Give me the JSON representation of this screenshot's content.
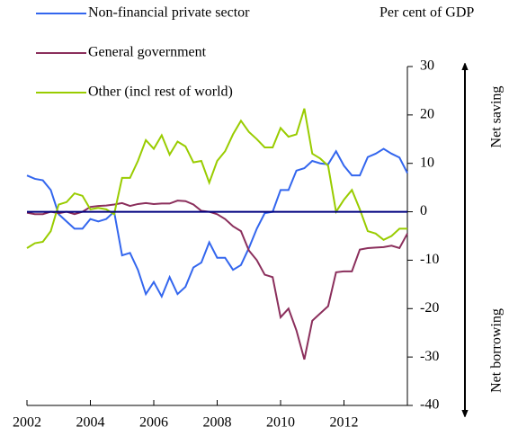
{
  "chart_data": {
    "type": "line",
    "y_axis_label": "Per cent of GDP",
    "annotations": [
      "Net saving",
      "Net borrowing"
    ],
    "x": [
      2002,
      2002.25,
      2002.5,
      2002.75,
      2003,
      2003.25,
      2003.5,
      2003.75,
      2004,
      2004.25,
      2004.5,
      2004.75,
      2005,
      2005.25,
      2005.5,
      2005.75,
      2006,
      2006.25,
      2006.5,
      2006.75,
      2007,
      2007.25,
      2007.5,
      2007.75,
      2008,
      2008.25,
      2008.5,
      2008.75,
      2009,
      2009.25,
      2009.5,
      2009.75,
      2010,
      2010.25,
      2010.5,
      2010.75,
      2011,
      2011.25,
      2011.5,
      2011.75,
      2012,
      2012.25,
      2012.5,
      2012.75,
      2013,
      2013.25,
      2013.5,
      2013.75,
      2014
    ],
    "series": [
      {
        "name": "Non-financial private sector",
        "color": "#3366ee",
        "values": [
          7.5,
          6.8,
          6.5,
          4.5,
          -0.5,
          -2,
          -3.5,
          -3.5,
          -1.5,
          -2,
          -1.5,
          0,
          -9,
          -8.5,
          -12,
          -17,
          -14.5,
          -17.5,
          -13.5,
          -17,
          -15.5,
          -11.5,
          -10.5,
          -6.3,
          -9.5,
          -9.5,
          -12,
          -11,
          -7.5,
          -3.5,
          -0.3,
          0,
          4.5,
          4.5,
          8.5,
          9,
          10.5,
          10,
          9.8,
          12.5,
          9.5,
          7.5,
          7.5,
          11.3,
          12,
          13,
          12,
          11.2,
          8
        ]
      },
      {
        "name": "General government",
        "color": "#8b2f5c",
        "values": [
          -0.2,
          -0.5,
          -0.5,
          0,
          -0.3,
          0,
          -0.5,
          0,
          1,
          1.2,
          1.3,
          1.5,
          1.8,
          1.2,
          1.6,
          1.8,
          1.6,
          1.7,
          1.7,
          2.3,
          2.2,
          1.5,
          0.2,
          0,
          -0.5,
          -1.5,
          -3,
          -4,
          -8,
          -10,
          -13,
          -13.5,
          -21.8,
          -20,
          -24.5,
          -30.5,
          -22.5,
          -21,
          -19.5,
          -12.5,
          -12.3,
          -12.3,
          -7.8,
          -7.5,
          -7.4,
          -7.3,
          -7,
          -7.5,
          -4.5
        ]
      },
      {
        "name": "Other (incl rest of world)",
        "color": "#99cc00",
        "values": [
          -7.5,
          -6.5,
          -6.2,
          -4,
          1.5,
          2,
          3.8,
          3.3,
          0.5,
          0.8,
          0.5,
          -0.5,
          7,
          7,
          10.5,
          14.8,
          13,
          15.8,
          11.8,
          14.5,
          13.5,
          10.2,
          10.5,
          6,
          10.5,
          12.5,
          16,
          18.8,
          16.5,
          15,
          13.3,
          13.3,
          17.3,
          15.5,
          16,
          21.3,
          12,
          11,
          9.5,
          0,
          2.5,
          4.5,
          0.5,
          -4,
          -4.5,
          -5.8,
          -5,
          -3.5,
          -3.5
        ]
      }
    ],
    "xlim": [
      2002,
      2014
    ],
    "xticks": [
      2002,
      2004,
      2006,
      2008,
      2010,
      2012
    ],
    "ylim": [
      -40,
      30
    ],
    "yticks": [
      -40,
      -30,
      -20,
      -10,
      0,
      10,
      20,
      30
    ],
    "zero_line_color": "#000080"
  }
}
